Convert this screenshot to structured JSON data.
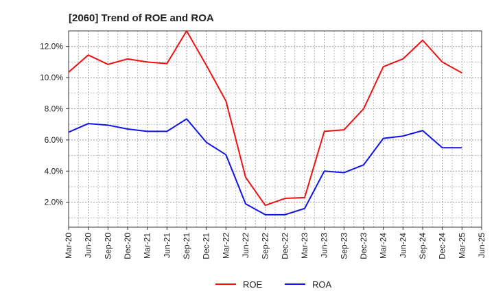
{
  "chart_data": {
    "type": "line",
    "title": "[2060]  Trend of ROE and ROA",
    "xlabel": "",
    "ylabel": "",
    "x": [
      "Mar-20",
      "Jun-20",
      "Sep-20",
      "Dec-20",
      "Mar-21",
      "Jun-21",
      "Sep-21",
      "Dec-21",
      "Mar-22",
      "Jun-22",
      "Sep-22",
      "Dec-22",
      "Mar-23",
      "Jun-23",
      "Sep-23",
      "Dec-23",
      "Mar-24",
      "Jun-24",
      "Sep-24",
      "Dec-24",
      "Mar-25",
      "Jun-25"
    ],
    "ylim": [
      0.4,
      13.0
    ],
    "yticks": [
      2.0,
      4.0,
      6.0,
      8.0,
      10.0,
      12.0
    ],
    "ytick_labels": [
      "2.0%",
      "4.0%",
      "6.0%",
      "8.0%",
      "10.0%",
      "12.0%"
    ],
    "grid": true,
    "legend_position": "bottom-center",
    "series": [
      {
        "name": "ROE",
        "color": "#ee1111",
        "values": [
          10.35,
          11.45,
          10.85,
          11.2,
          11.0,
          10.9,
          13.0,
          10.8,
          8.5,
          3.6,
          1.8,
          2.25,
          2.3,
          6.55,
          6.65,
          8.0,
          10.7,
          11.2,
          12.4,
          11.0,
          10.3,
          null
        ]
      },
      {
        "name": "ROA",
        "color": "#1111ee",
        "values": [
          6.5,
          7.05,
          6.95,
          6.7,
          6.55,
          6.55,
          7.35,
          5.85,
          5.05,
          1.9,
          1.2,
          1.2,
          1.6,
          4.0,
          3.9,
          4.4,
          6.1,
          6.25,
          6.6,
          5.5,
          5.5,
          null
        ]
      }
    ]
  }
}
